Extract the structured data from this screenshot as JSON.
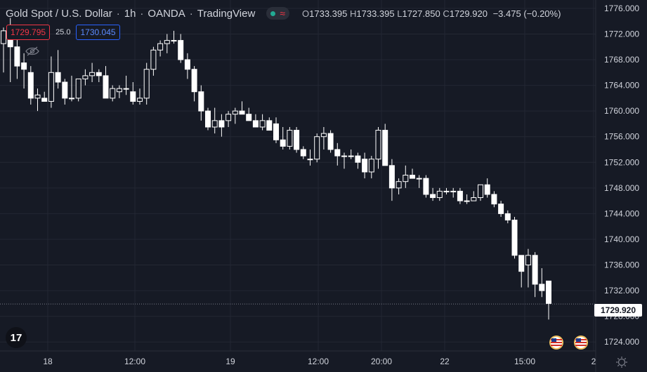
{
  "header": {
    "symbol": "Gold Spot / U.S. Dollar",
    "separator": "/",
    "interval": "1h",
    "source": "OANDA",
    "platform": "TradingView",
    "ohlc": {
      "o_label": "O",
      "o": "1733.395",
      "h_label": "H",
      "h": "1733.395",
      "l_label": "L",
      "l": "1727.850",
      "c_label": "C",
      "c": "1729.920",
      "change": "−3.475 (−0.20%)"
    }
  },
  "quote": {
    "bid": "1729.795",
    "spread": "25.0",
    "ask": "1730.045"
  },
  "last_price": "1729.920",
  "colors": {
    "background": "#161a25",
    "grid": "#232733",
    "candle_up": "#161a25",
    "candle_down": "#ffffff",
    "wick": "#ffffff",
    "bid": "#f23645",
    "ask": "#2962ff"
  },
  "icons": {
    "visibility": "eye-off-icon",
    "logo": "tradingview-logo-icon",
    "events": "us-flag-icon",
    "settings": "gear-icon"
  },
  "logo_text": "17",
  "chart_data": {
    "type": "candlestick",
    "y_ticks": [
      "1776.000",
      "1772.000",
      "1768.000",
      "1764.000",
      "1760.000",
      "1756.000",
      "1752.000",
      "1748.000",
      "1744.000",
      "1740.000",
      "1736.000",
      "1732.000",
      "1728.000",
      "1724.000"
    ],
    "x_ticks": [
      "18",
      "12:00",
      "19",
      "12:00",
      "20:00",
      "22",
      "15:00",
      "2"
    ],
    "ylim": [
      1722.6,
      1777.3
    ],
    "candles": [
      [
        1770.5,
        1773.0,
        1766.0,
        1772.5
      ],
      [
        1772.5,
        1774.5,
        1764.5,
        1770.0
      ],
      [
        1770.0,
        1771.5,
        1765.0,
        1767.0
      ],
      [
        1767.5,
        1769.0,
        1763.5,
        1766.5
      ],
      [
        1766.0,
        1767.0,
        1761.0,
        1762.0
      ],
      [
        1762.0,
        1763.5,
        1760.0,
        1762.5
      ],
      [
        1762.0,
        1763.0,
        1761.5,
        1761.5
      ],
      [
        1761.5,
        1768.5,
        1760.5,
        1766.0
      ],
      [
        1766.0,
        1769.5,
        1763.5,
        1764.5
      ],
      [
        1764.5,
        1765.0,
        1761.0,
        1762.0
      ],
      [
        1762.0,
        1765.5,
        1761.5,
        1762.0
      ],
      [
        1762.0,
        1765.0,
        1761.5,
        1765.0
      ],
      [
        1765.0,
        1766.5,
        1764.0,
        1765.5
      ],
      [
        1765.5,
        1767.5,
        1764.5,
        1766.0
      ],
      [
        1766.0,
        1766.5,
        1764.5,
        1765.5
      ],
      [
        1765.5,
        1767.0,
        1762.0,
        1762.0
      ],
      [
        1762.0,
        1764.0,
        1761.5,
        1763.5
      ],
      [
        1763.0,
        1764.0,
        1762.0,
        1763.5
      ],
      [
        1763.5,
        1765.5,
        1762.5,
        1763.5
      ],
      [
        1763.0,
        1764.5,
        1761.0,
        1761.5
      ],
      [
        1761.5,
        1763.5,
        1761.0,
        1762.0
      ],
      [
        1762.0,
        1767.5,
        1761.0,
        1766.5
      ],
      [
        1766.5,
        1770.0,
        1765.5,
        1769.5
      ],
      [
        1769.5,
        1771.0,
        1768.5,
        1770.5
      ],
      [
        1770.5,
        1772.0,
        1769.0,
        1771.0
      ],
      [
        1771.0,
        1772.5,
        1770.5,
        1771.0
      ],
      [
        1771.0,
        1772.0,
        1767.5,
        1768.0
      ],
      [
        1768.0,
        1769.0,
        1765.0,
        1766.5
      ],
      [
        1766.5,
        1767.0,
        1761.5,
        1763.0
      ],
      [
        1763.0,
        1764.0,
        1758.5,
        1760.0
      ],
      [
        1760.0,
        1760.5,
        1757.0,
        1757.5
      ],
      [
        1757.5,
        1760.5,
        1756.5,
        1758.5
      ],
      [
        1758.5,
        1759.5,
        1756.0,
        1757.5
      ],
      [
        1758.5,
        1760.0,
        1757.5,
        1759.5
      ],
      [
        1759.5,
        1760.5,
        1758.0,
        1760.0
      ],
      [
        1760.0,
        1761.5,
        1759.5,
        1759.5
      ],
      [
        1759.5,
        1760.5,
        1758.5,
        1758.5
      ],
      [
        1758.5,
        1759.5,
        1757.5,
        1757.5
      ],
      [
        1757.5,
        1759.5,
        1757.0,
        1758.5
      ],
      [
        1758.5,
        1759.0,
        1757.0,
        1757.0
      ],
      [
        1758.0,
        1759.0,
        1755.0,
        1755.5
      ],
      [
        1755.5,
        1757.5,
        1754.0,
        1754.5
      ],
      [
        1754.5,
        1757.5,
        1754.0,
        1757.0
      ],
      [
        1757.0,
        1757.5,
        1753.5,
        1754.0
      ],
      [
        1754.0,
        1754.5,
        1752.5,
        1753.0
      ],
      [
        1752.5,
        1754.0,
        1751.5,
        1752.5
      ],
      [
        1752.5,
        1756.5,
        1752.0,
        1756.0
      ],
      [
        1756.0,
        1757.5,
        1754.0,
        1756.5
      ],
      [
        1756.5,
        1757.0,
        1753.5,
        1754.0
      ],
      [
        1754.0,
        1755.0,
        1751.5,
        1753.0
      ],
      [
        1753.0,
        1753.5,
        1751.0,
        1753.0
      ],
      [
        1753.0,
        1754.0,
        1752.5,
        1753.0
      ],
      [
        1753.0,
        1753.5,
        1751.0,
        1752.0
      ],
      [
        1752.5,
        1753.5,
        1749.5,
        1750.5
      ],
      [
        1750.5,
        1753.0,
        1749.5,
        1752.5
      ],
      [
        1752.5,
        1757.5,
        1751.0,
        1757.0
      ],
      [
        1757.0,
        1758.0,
        1751.5,
        1751.5
      ],
      [
        1751.5,
        1752.5,
        1746.0,
        1748.0
      ],
      [
        1748.0,
        1749.5,
        1747.0,
        1749.0
      ],
      [
        1749.0,
        1751.5,
        1748.0,
        1750.0
      ],
      [
        1750.0,
        1751.0,
        1749.5,
        1749.5
      ],
      [
        1749.5,
        1750.0,
        1748.0,
        1749.5
      ],
      [
        1749.5,
        1750.0,
        1746.5,
        1747.0
      ],
      [
        1747.0,
        1748.0,
        1746.0,
        1746.5
      ],
      [
        1746.5,
        1748.0,
        1746.0,
        1747.5
      ],
      [
        1747.5,
        1748.0,
        1747.0,
        1747.5
      ],
      [
        1747.5,
        1748.0,
        1746.5,
        1747.5
      ],
      [
        1747.5,
        1748.0,
        1745.5,
        1746.0
      ],
      [
        1746.0,
        1747.0,
        1745.5,
        1746.0
      ],
      [
        1746.0,
        1747.5,
        1746.0,
        1746.5
      ],
      [
        1746.5,
        1748.5,
        1746.0,
        1748.5
      ],
      [
        1748.5,
        1749.5,
        1746.5,
        1747.0
      ],
      [
        1747.0,
        1747.5,
        1745.0,
        1745.5
      ],
      [
        1745.5,
        1746.0,
        1743.5,
        1744.0
      ],
      [
        1744.0,
        1744.5,
        1742.5,
        1743.0
      ],
      [
        1743.0,
        1743.5,
        1737.0,
        1737.5
      ],
      [
        1737.5,
        1737.5,
        1732.5,
        1735.0
      ],
      [
        1736.0,
        1738.5,
        1732.5,
        1737.5
      ],
      [
        1737.5,
        1738.0,
        1731.0,
        1733.0
      ],
      [
        1733.0,
        1735.5,
        1731.0,
        1732.0
      ],
      [
        1733.5,
        1733.5,
        1727.5,
        1730.0
      ]
    ]
  }
}
